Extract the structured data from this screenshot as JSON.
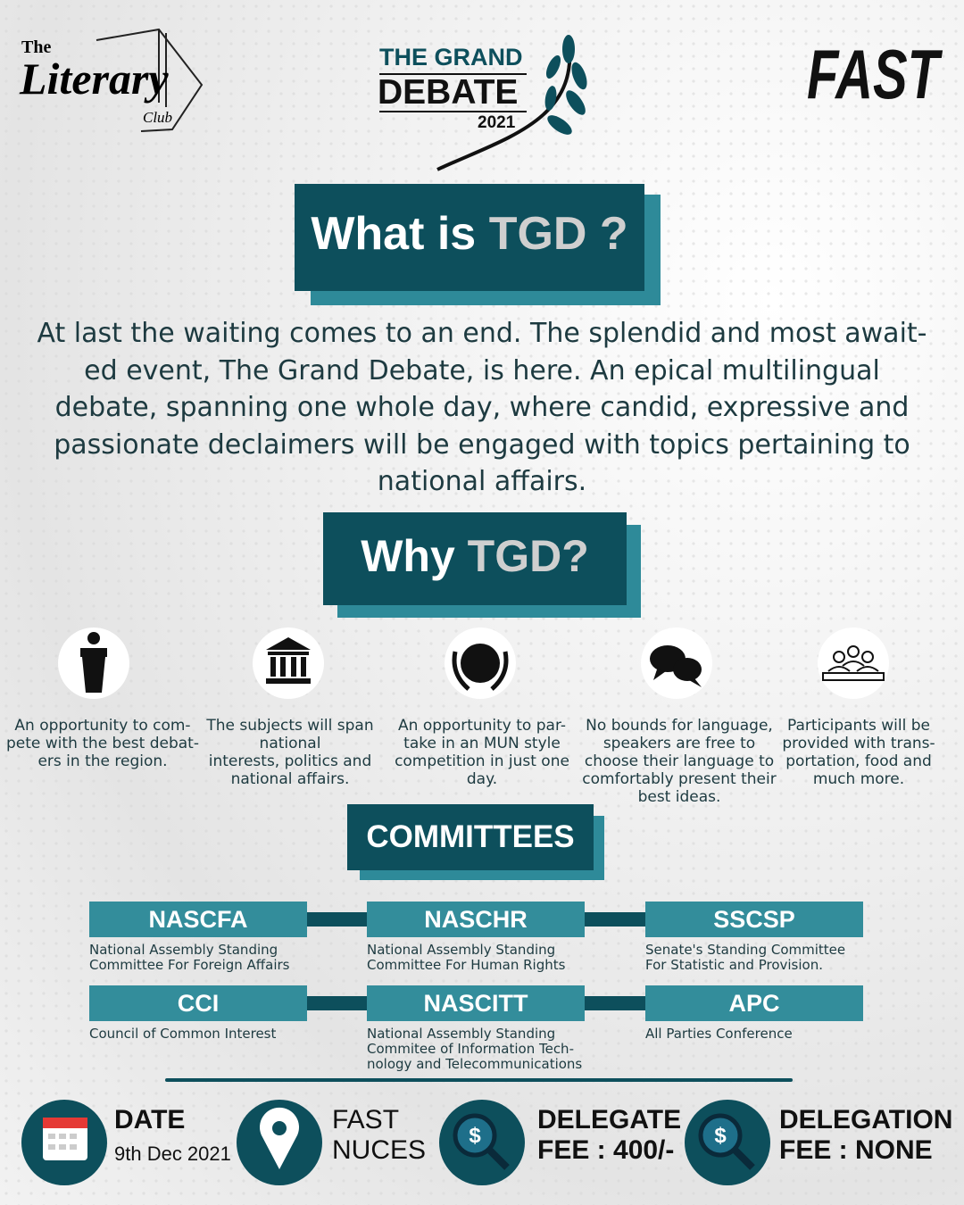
{
  "header": {
    "logo_left": {
      "the": "The",
      "name": "Literary",
      "club": "Club"
    },
    "event": {
      "line1": "THE GRAND",
      "line2": "DEBATE",
      "year": "2021"
    },
    "logo_right": "FAST"
  },
  "what": {
    "heading": "What is",
    "highlight": "TGD ?",
    "paragraph": [
      "At last the waiting comes to an end. The splendid and most await-",
      "ed event, The Grand Debate, is here. An epical multilingual",
      "debate, spanning one whole day, where candid, expressive and",
      "passionate declaimers will be engaged with topics pertaining to",
      "national affairs."
    ]
  },
  "why": {
    "heading": "Why",
    "highlight": "TGD?",
    "reasons": [
      [
        "An opportunity to com-",
        "pete with the best debat-",
        "ers in the region."
      ],
      [
        "The subjects will span",
        "national",
        "interests, politics and",
        "national affairs."
      ],
      [
        "An opportunity to par-",
        "take in an MUN style",
        "competition in just one",
        "day."
      ],
      [
        "No bounds for language,",
        "speakers are free to",
        "choose their language to",
        "comfortably present their",
        "best ideas."
      ],
      [
        "Participants will be",
        "provided with trans-",
        "portation, food and",
        "much more."
      ]
    ]
  },
  "committees": {
    "heading": "COMMITTEES",
    "items": [
      {
        "abbr": "NASCFA",
        "full": [
          "National Assembly Standing",
          "Committee For Foreign Affairs"
        ]
      },
      {
        "abbr": "NASCHR",
        "full": [
          "National Assembly Standing",
          "Committee For Human Rights"
        ]
      },
      {
        "abbr": "SSCSP",
        "full": [
          "Senate's Standing Committee",
          "For Statistic and Provision."
        ]
      },
      {
        "abbr": "CCI",
        "full": [
          "Council of Common Interest"
        ]
      },
      {
        "abbr": "NASCITT",
        "full": [
          "National Assembly Standing",
          "Commitee of Information Tech-",
          "nology and Telecommunications"
        ]
      },
      {
        "abbr": "APC",
        "full": [
          "All Parties Conference"
        ]
      }
    ]
  },
  "footer": [
    {
      "label": "DATE",
      "value": "9th Dec 2021"
    },
    {
      "label": "FAST",
      "value": "NUCES"
    },
    {
      "label": "DELEGATE",
      "value": "FEE : 400/-"
    },
    {
      "label": "DELEGATION",
      "value": "FEE : NONE"
    }
  ]
}
